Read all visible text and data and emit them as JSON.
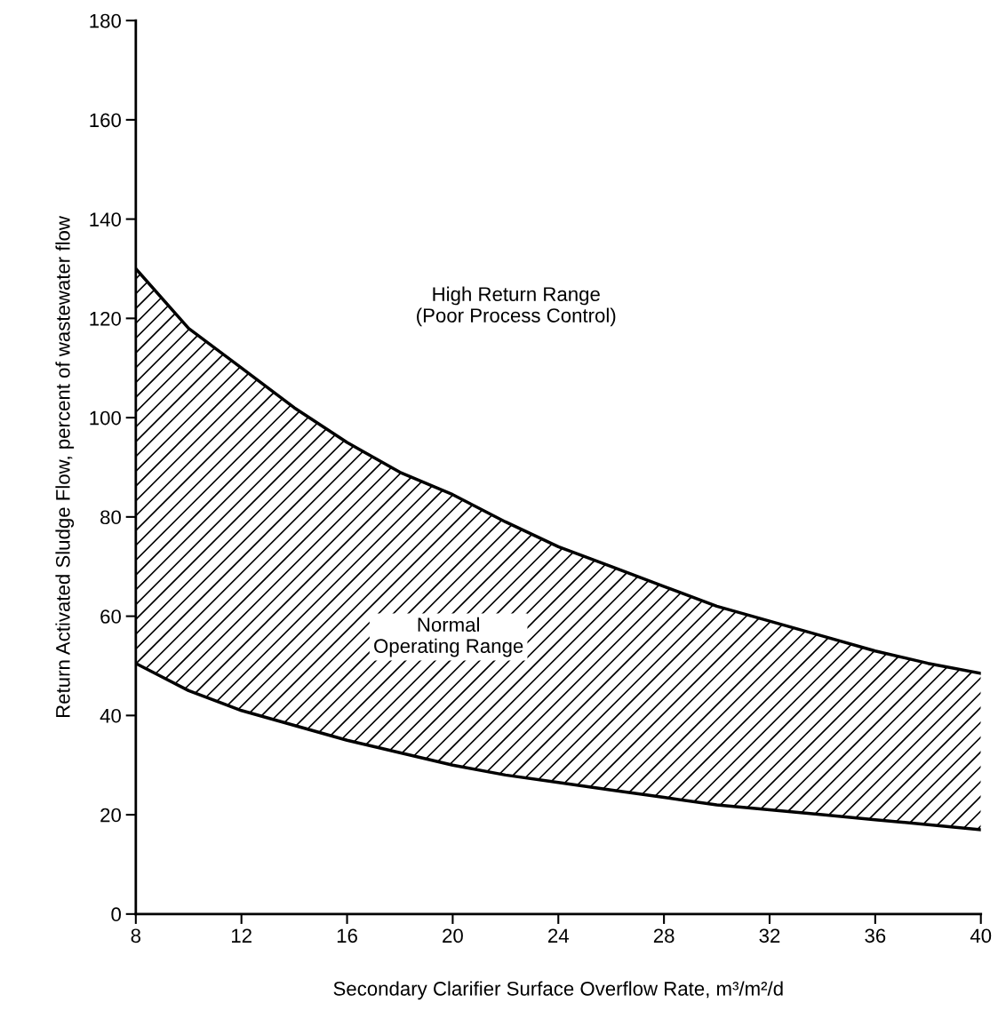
{
  "chart_data": {
    "type": "line",
    "xlabel": "Secondary Clarifier Surface Overflow Rate, m³/m²/d",
    "ylabel": "Return Activated Sludge Flow, percent of wastewater flow",
    "x": [
      8,
      10,
      12,
      14,
      16,
      18,
      20,
      22,
      24,
      26,
      28,
      30,
      32,
      34,
      36,
      38,
      40
    ],
    "series": [
      {
        "color": "#000000",
        "values": [
          50.5,
          45,
          41,
          38,
          35,
          32.5,
          30,
          28,
          26.5,
          25,
          23.5,
          22,
          21,
          20,
          19,
          18,
          17
        ]
      },
      {
        "color": "#000000",
        "values": [
          130,
          118,
          110,
          102,
          95,
          89,
          84.5,
          79,
          74,
          70,
          66,
          62,
          59,
          56,
          53,
          50.5,
          48.5
        ],
        "lower": [
          50.5,
          45,
          41,
          38,
          35,
          32.5,
          30,
          28,
          26.5,
          25,
          23.5,
          22,
          21,
          20,
          19,
          18,
          17
        ],
        "upper": [
          130,
          118,
          110,
          102,
          95,
          89,
          84.5,
          79,
          74,
          70,
          66,
          62,
          59,
          56,
          53,
          50.5,
          48.5
        ]
      }
    ],
    "annotations": [
      "High Return Range\n(Poor Process Control)",
      "Normal\nOperating Range"
    ],
    "xlim": [
      8,
      40
    ],
    "ylim": [
      0,
      180
    ],
    "xticks": [
      8,
      12,
      16,
      20,
      24,
      28,
      32,
      36,
      40
    ],
    "yticks": [
      0,
      20,
      40,
      60,
      80,
      100,
      120,
      140,
      160,
      180
    ]
  }
}
